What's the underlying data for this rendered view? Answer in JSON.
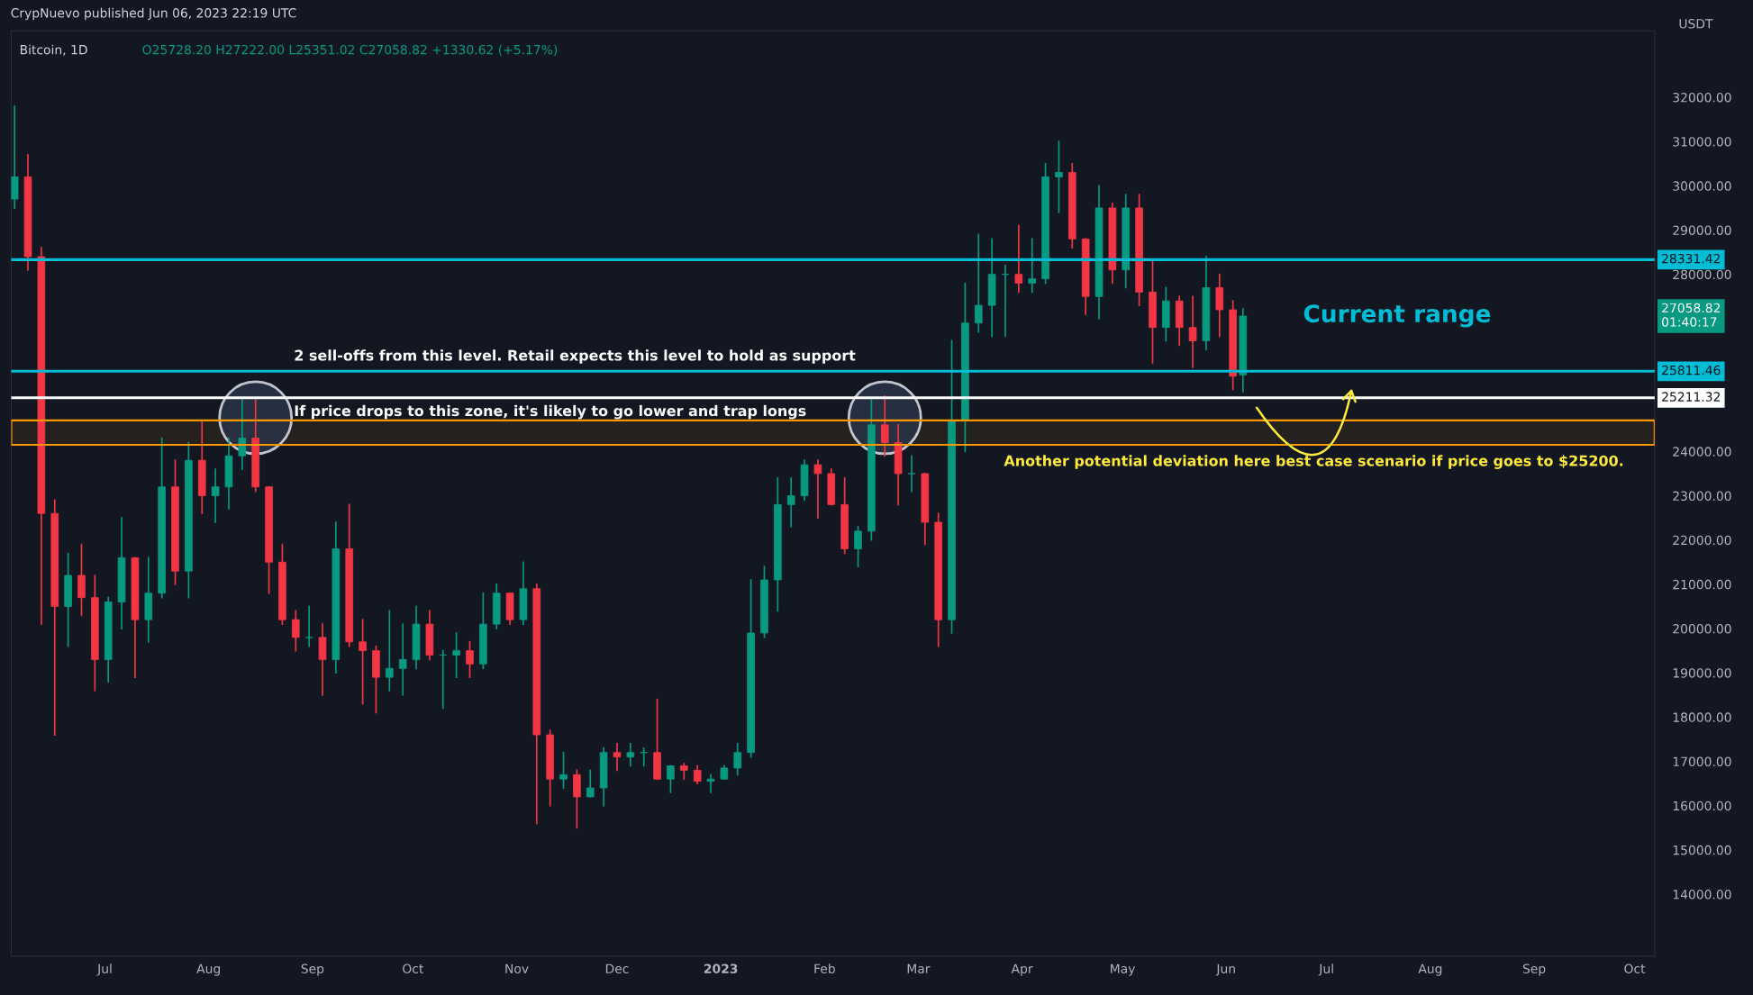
{
  "chart_data": {
    "type": "candlestick",
    "title": "Bitcoin, 1D",
    "subtitle": "O25728.20 H27222.00 L25351.02 C27058.82 +1330.62 (+5.17%)",
    "ylabel": "USDT",
    "x": [
      "2022-06-04",
      "2022-06-08",
      "2022-06-12",
      "2022-06-16",
      "2022-06-20",
      "2022-06-24",
      "2022-06-28",
      "2022-07-02",
      "2022-07-06",
      "2022-07-10",
      "2022-07-14",
      "2022-07-18",
      "2022-07-22",
      "2022-07-26",
      "2022-07-30",
      "2022-08-03",
      "2022-08-07",
      "2022-08-11",
      "2022-08-15",
      "2022-08-19",
      "2022-08-23",
      "2022-08-27",
      "2022-08-31",
      "2022-09-04",
      "2022-09-08",
      "2022-09-12",
      "2022-09-16",
      "2022-09-20",
      "2022-09-24",
      "2022-09-28",
      "2022-10-02",
      "2022-10-06",
      "2022-10-10",
      "2022-10-14",
      "2022-10-18",
      "2022-10-22",
      "2022-10-26",
      "2022-10-30",
      "2022-11-03",
      "2022-11-07",
      "2022-11-11",
      "2022-11-15",
      "2022-11-19",
      "2022-11-23",
      "2022-11-27",
      "2022-12-01",
      "2022-12-05",
      "2022-12-09",
      "2022-12-13",
      "2022-12-17",
      "2022-12-21",
      "2022-12-25",
      "2022-12-29",
      "2023-01-02",
      "2023-01-06",
      "2023-01-10",
      "2023-01-14",
      "2023-01-18",
      "2023-01-22",
      "2023-01-26",
      "2023-01-30",
      "2023-02-03",
      "2023-02-07",
      "2023-02-11",
      "2023-02-15",
      "2023-02-19",
      "2023-02-23",
      "2023-02-27",
      "2023-03-03",
      "2023-03-07",
      "2023-03-11",
      "2023-03-15",
      "2023-03-19",
      "2023-03-23",
      "2023-03-27",
      "2023-03-31",
      "2023-04-04",
      "2023-04-08",
      "2023-04-12",
      "2023-04-16",
      "2023-04-20",
      "2023-04-24",
      "2023-04-28",
      "2023-05-02",
      "2023-05-06",
      "2023-05-10",
      "2023-05-14",
      "2023-05-18",
      "2023-05-22",
      "2023-05-26",
      "2023-05-30",
      "2023-06-03",
      "2023-06-06"
    ],
    "ohlc": [
      [
        29700,
        31800,
        29500,
        30200
      ],
      [
        30200,
        30700,
        28100,
        28400
      ],
      [
        28400,
        28600,
        20100,
        22600
      ],
      [
        22600,
        22900,
        17600,
        20500
      ],
      [
        20500,
        21700,
        19600,
        21200
      ],
      [
        21200,
        21900,
        20300,
        20700
      ],
      [
        20700,
        21200,
        18600,
        19300
      ],
      [
        19300,
        20700,
        18800,
        20600
      ],
      [
        20600,
        22500,
        20000,
        21600
      ],
      [
        21600,
        21600,
        18900,
        20200
      ],
      [
        20200,
        21600,
        19700,
        20800
      ],
      [
        20800,
        24300,
        20700,
        23200
      ],
      [
        23200,
        23800,
        21000,
        21300
      ],
      [
        21300,
        24200,
        20700,
        23800
      ],
      [
        23800,
        24700,
        22600,
        23000
      ],
      [
        23000,
        23600,
        22400,
        23200
      ],
      [
        23200,
        24300,
        22700,
        23900
      ],
      [
        23900,
        25200,
        23600,
        24300
      ],
      [
        24300,
        25200,
        23100,
        23200
      ],
      [
        23200,
        23200,
        20800,
        21500
      ],
      [
        21500,
        21900,
        20100,
        20200
      ],
      [
        20200,
        20400,
        19500,
        19800
      ],
      [
        19800,
        20500,
        19600,
        19800
      ],
      [
        19800,
        20100,
        18500,
        19300
      ],
      [
        19300,
        22400,
        19000,
        21800
      ],
      [
        21800,
        22800,
        19600,
        19700
      ],
      [
        19700,
        20200,
        18300,
        19500
      ],
      [
        19500,
        19600,
        18100,
        18900
      ],
      [
        18900,
        20400,
        18600,
        19100
      ],
      [
        19100,
        20100,
        18500,
        19300
      ],
      [
        19300,
        20500,
        19100,
        20100
      ],
      [
        20100,
        20400,
        19300,
        19400
      ],
      [
        19400,
        19500,
        18200,
        19400
      ],
      [
        19400,
        19900,
        18900,
        19500
      ],
      [
        19500,
        19700,
        18900,
        19200
      ],
      [
        19200,
        20800,
        19100,
        20100
      ],
      [
        20100,
        21000,
        20000,
        20800
      ],
      [
        20800,
        20800,
        20100,
        20200
      ],
      [
        20200,
        21500,
        20100,
        20900
      ],
      [
        20900,
        21000,
        15600,
        17600
      ],
      [
        17600,
        17700,
        16000,
        16600
      ],
      [
        16600,
        17200,
        16400,
        16700
      ],
      [
        16700,
        16800,
        15500,
        16200
      ],
      [
        16200,
        16800,
        16200,
        16400
      ],
      [
        16400,
        17300,
        16000,
        17200
      ],
      [
        17200,
        17400,
        16800,
        17100
      ],
      [
        17100,
        17400,
        16900,
        17200
      ],
      [
        17200,
        17300,
        16900,
        17200
      ],
      [
        17200,
        18400,
        16600,
        16600
      ],
      [
        16600,
        16900,
        16300,
        16900
      ],
      [
        16900,
        16950,
        16600,
        16800
      ],
      [
        16800,
        16900,
        16500,
        16550
      ],
      [
        16550,
        16700,
        16300,
        16600
      ],
      [
        16600,
        16900,
        16600,
        16850
      ],
      [
        16850,
        17400,
        16700,
        17200
      ],
      [
        17200,
        21100,
        17100,
        19900
      ],
      [
        19900,
        21400,
        19800,
        21100
      ],
      [
        21100,
        23400,
        20400,
        22800
      ],
      [
        22800,
        23400,
        22300,
        23000
      ],
      [
        23000,
        23800,
        22900,
        23700
      ],
      [
        23700,
        23800,
        22500,
        23500
      ],
      [
        23500,
        23600,
        22800,
        22800
      ],
      [
        22800,
        23400,
        21700,
        21800
      ],
      [
        21800,
        22300,
        21400,
        22200
      ],
      [
        22200,
        25200,
        22000,
        24600
      ],
      [
        24600,
        25250,
        23900,
        24200
      ],
      [
        24200,
        24600,
        22800,
        23500
      ],
      [
        23500,
        23900,
        23100,
        23500
      ],
      [
        23500,
        23500,
        21900,
        22400
      ],
      [
        22400,
        22600,
        19600,
        20200
      ],
      [
        20200,
        26500,
        19900,
        24700
      ],
      [
        24700,
        27800,
        24000,
        26900
      ],
      [
        26900,
        28900,
        26700,
        27300
      ],
      [
        27300,
        28800,
        26600,
        28000
      ],
      [
        28000,
        28200,
        26600,
        28000
      ],
      [
        28000,
        29100,
        27600,
        27800
      ],
      [
        27800,
        28800,
        27600,
        27900
      ],
      [
        27900,
        30500,
        27800,
        30200
      ],
      [
        30200,
        31000,
        29400,
        30300
      ],
      [
        30300,
        30500,
        28600,
        28800
      ],
      [
        28800,
        28800,
        27100,
        27500
      ],
      [
        27500,
        30000,
        27000,
        29500
      ],
      [
        29500,
        29600,
        27800,
        28100
      ],
      [
        28100,
        29800,
        27700,
        29500
      ],
      [
        29500,
        29800,
        27300,
        27600
      ],
      [
        27600,
        28300,
        26000,
        26800
      ],
      [
        26800,
        27700,
        26500,
        27400
      ],
      [
        27400,
        27500,
        26400,
        26800
      ],
      [
        26800,
        27500,
        25900,
        26500
      ],
      [
        26500,
        28400,
        26300,
        27700
      ],
      [
        27700,
        28000,
        26600,
        27200
      ],
      [
        27200,
        27400,
        25400,
        25700
      ],
      [
        25728.2,
        27222.0,
        25351.02,
        27058.82
      ]
    ],
    "xlim": [
      "2022-06-03",
      "2023-10-07"
    ],
    "ylim": [
      12600,
      33500
    ],
    "xticks": [
      {
        "value": "2022-07-01",
        "label": "Jul"
      },
      {
        "value": "2022-08-01",
        "label": "Aug"
      },
      {
        "value": "2022-09-01",
        "label": "Sep"
      },
      {
        "value": "2022-10-01",
        "label": "Oct"
      },
      {
        "value": "2022-11-01",
        "label": "Nov"
      },
      {
        "value": "2022-12-01",
        "label": "Dec"
      },
      {
        "value": "2023-01-01",
        "label": "2023"
      },
      {
        "value": "2023-02-01",
        "label": "Feb"
      },
      {
        "value": "2023-03-01",
        "label": "Mar"
      },
      {
        "value": "2023-04-01",
        "label": "Apr"
      },
      {
        "value": "2023-05-01",
        "label": "May"
      },
      {
        "value": "2023-06-01",
        "label": "Jun"
      },
      {
        "value": "2023-07-01",
        "label": "Jul"
      },
      {
        "value": "2023-08-01",
        "label": "Aug"
      },
      {
        "value": "2023-09-01",
        "label": "Sep"
      },
      {
        "value": "2023-10-01",
        "label": "Oct"
      }
    ],
    "yticks": [
      {
        "value": 14000,
        "label": "14000.00"
      },
      {
        "value": 15000,
        "label": "15000.00"
      },
      {
        "value": 16000,
        "label": "16000.00"
      },
      {
        "value": 17000,
        "label": "17000.00"
      },
      {
        "value": 18000,
        "label": "18000.00"
      },
      {
        "value": 19000,
        "label": "19000.00"
      },
      {
        "value": 20000,
        "label": "20000.00"
      },
      {
        "value": 21000,
        "label": "21000.00"
      },
      {
        "value": 22000,
        "label": "22000.00"
      },
      {
        "value": 23000,
        "label": "23000.00"
      },
      {
        "value": 24000,
        "label": "24000.00"
      },
      {
        "value": 28000,
        "label": "28000.00"
      },
      {
        "value": 29000,
        "label": "29000.00"
      },
      {
        "value": 30000,
        "label": "30000.00"
      },
      {
        "value": 31000,
        "label": "31000.00"
      },
      {
        "value": 32000,
        "label": "32000.00"
      }
    ],
    "ref_lines": [
      {
        "axis": "y",
        "value": 28331.42,
        "label": "28331.42",
        "color": "#00bcd4",
        "line_style": "solid"
      },
      {
        "axis": "y",
        "value": 25811.46,
        "label": "25811.46",
        "color": "#00bcd4",
        "line_style": "solid"
      },
      {
        "axis": "y",
        "value": 25211.32,
        "label": "25211.32",
        "color": "#ffffff",
        "line_style": "solid"
      }
    ],
    "bands": [
      {
        "axis": "y",
        "from": 24150,
        "to": 24700,
        "color": "#ff9800"
      }
    ],
    "annotations": [
      "CrypNuevo published Jun 06, 2023 22:19 UTC",
      "2 sell-offs from this level. Retail expects this level to hold as support",
      "If price drops to this zone, it's likely to go lower and trap longs",
      "Current range",
      "Another potential deviation here best case scenario if price goes to $25200.",
      "27058.82\n01:40:17"
    ]
  }
}
